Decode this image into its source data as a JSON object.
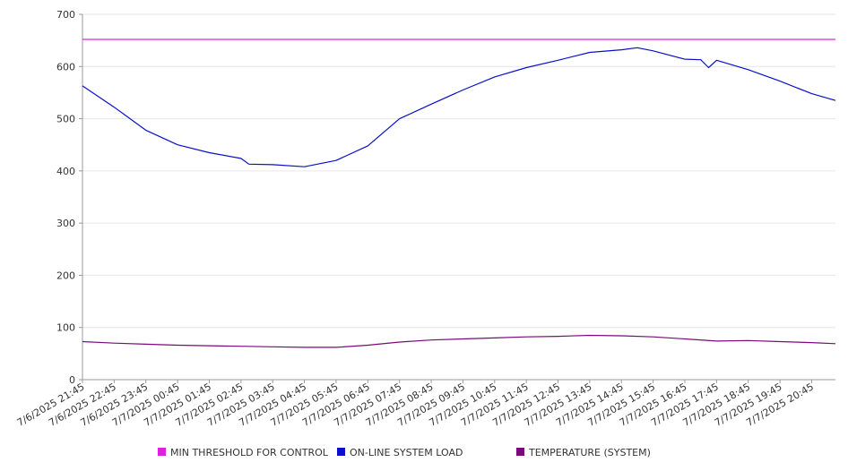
{
  "chart_data": {
    "type": "line",
    "title": "",
    "xlabel": "",
    "ylabel": "",
    "ylim": [
      0,
      700
    ],
    "yticks": [
      0,
      100,
      200,
      300,
      400,
      500,
      600,
      700
    ],
    "grid": true,
    "legend_placement": "bottom",
    "categories": [
      "7/6/2025 21:45",
      "7/6/2025 22:45",
      "7/6/2025 23:45",
      "7/7/2025 00:45",
      "7/7/2025 01:45",
      "7/7/2025 02:45",
      "7/7/2025 03:45",
      "7/7/2025 04:45",
      "7/7/2025 05:45",
      "7/7/2025 06:45",
      "7/7/2025 07:45",
      "7/7/2025 08:45",
      "7/7/2025 09:45",
      "7/7/2025 10:45",
      "7/7/2025 11:45",
      "7/7/2025 12:45",
      "7/7/2025 13:45",
      "7/7/2025 14:45",
      "7/7/2025 15:45",
      "7/7/2025 16:45",
      "7/7/2025 17:45",
      "7/7/2025 18:45",
      "7/7/2025 19:45",
      "7/7/2025 20:45"
    ],
    "x_end": "7/7/2025 21:30",
    "series": [
      {
        "name": "MIN THRESHOLD FOR CONTROL",
        "color": "#e020e0",
        "points": [
          [
            "7/6/2025 21:45",
            652
          ],
          [
            "7/7/2025 21:30",
            652
          ]
        ]
      },
      {
        "name": "ON-LINE SYSTEM LOAD",
        "color": "#0a10c8",
        "points": [
          [
            "7/6/2025 21:45",
            563
          ],
          [
            "7/6/2025 22:45",
            522
          ],
          [
            "7/6/2025 23:45",
            478
          ],
          [
            "7/7/2025 00:45",
            450
          ],
          [
            "7/7/2025 01:45",
            435
          ],
          [
            "7/7/2025 02:45",
            424
          ],
          [
            "7/7/2025 03:00",
            413
          ],
          [
            "7/7/2025 03:45",
            412
          ],
          [
            "7/7/2025 04:45",
            408
          ],
          [
            "7/7/2025 05:45",
            420
          ],
          [
            "7/7/2025 06:45",
            448
          ],
          [
            "7/7/2025 07:45",
            500
          ],
          [
            "7/7/2025 08:45",
            528
          ],
          [
            "7/7/2025 09:45",
            555
          ],
          [
            "7/7/2025 10:45",
            580
          ],
          [
            "7/7/2025 11:45",
            598
          ],
          [
            "7/7/2025 12:45",
            612
          ],
          [
            "7/7/2025 13:45",
            627
          ],
          [
            "7/7/2025 14:45",
            632
          ],
          [
            "7/7/2025 15:15",
            636
          ],
          [
            "7/7/2025 15:45",
            630
          ],
          [
            "7/7/2025 16:45",
            614
          ],
          [
            "7/7/2025 17:15",
            613
          ],
          [
            "7/7/2025 17:30",
            598
          ],
          [
            "7/7/2025 17:45",
            612
          ],
          [
            "7/7/2025 18:45",
            594
          ],
          [
            "7/7/2025 19:45",
            572
          ],
          [
            "7/7/2025 20:45",
            548
          ],
          [
            "7/7/2025 21:30",
            535
          ]
        ]
      },
      {
        "name": "TEMPERATURE (SYSTEM)",
        "color": "#7a0a7a",
        "points": [
          [
            "7/6/2025 21:45",
            73
          ],
          [
            "7/6/2025 22:45",
            70
          ],
          [
            "7/6/2025 23:45",
            68
          ],
          [
            "7/7/2025 00:45",
            66
          ],
          [
            "7/7/2025 01:45",
            65
          ],
          [
            "7/7/2025 02:45",
            64
          ],
          [
            "7/7/2025 03:45",
            63
          ],
          [
            "7/7/2025 04:45",
            62
          ],
          [
            "7/7/2025 05:45",
            62
          ],
          [
            "7/7/2025 06:45",
            66
          ],
          [
            "7/7/2025 07:45",
            72
          ],
          [
            "7/7/2025 08:45",
            76
          ],
          [
            "7/7/2025 09:45",
            78
          ],
          [
            "7/7/2025 10:45",
            80
          ],
          [
            "7/7/2025 11:45",
            82
          ],
          [
            "7/7/2025 12:45",
            83
          ],
          [
            "7/7/2025 13:45",
            85
          ],
          [
            "7/7/2025 14:45",
            84
          ],
          [
            "7/7/2025 15:45",
            82
          ],
          [
            "7/7/2025 16:45",
            78
          ],
          [
            "7/7/2025 17:45",
            74
          ],
          [
            "7/7/2025 18:45",
            75
          ],
          [
            "7/7/2025 19:45",
            73
          ],
          [
            "7/7/2025 20:45",
            71
          ],
          [
            "7/7/2025 21:30",
            69
          ]
        ]
      }
    ]
  }
}
